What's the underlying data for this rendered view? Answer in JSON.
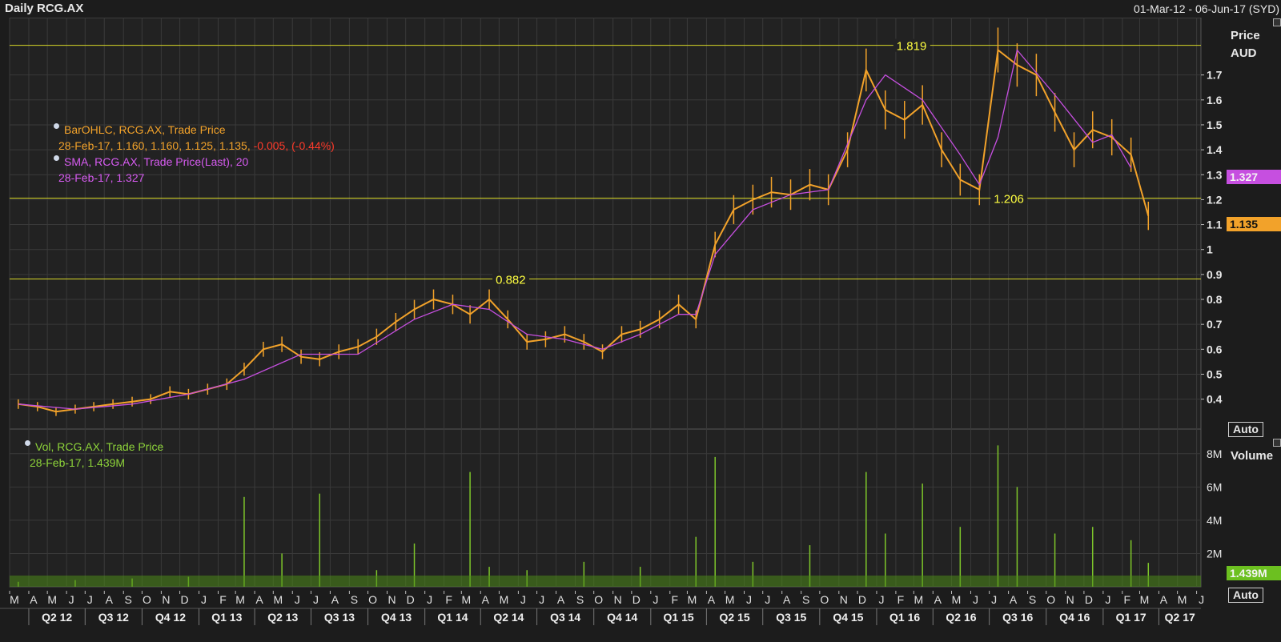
{
  "header": {
    "title": "Daily RCG.AX",
    "date_range": "01-Mar-12 - 06-Jun-17 (SYD)"
  },
  "legend": {
    "ohlc_name": "BarOHLC, RCG.AX, Trade Price",
    "ohlc_values": "28-Feb-17, 1.160, 1.160, 1.125, 1.135,",
    "ohlc_change": "-0.005, (-0.44%)",
    "sma_name": "SMA, RCG.AX, Trade Price(Last),  20",
    "sma_values": "28-Feb-17, 1.327",
    "vol_name": "Vol, RCG.AX, Trade Price",
    "vol_values": "28-Feb-17, 1.439M"
  },
  "price_axis": {
    "title": "Price",
    "unit": "AUD",
    "auto_label": "Auto",
    "ticks": [
      "0.4",
      "0.5",
      "0.6",
      "0.7",
      "0.8",
      "0.9",
      "1",
      "1.1",
      "1.2",
      "1.3",
      "1.4",
      "1.5",
      "1.6",
      "1.7"
    ],
    "last_sma_tag": "1.327",
    "last_price_tag": "1.135"
  },
  "volume_axis": {
    "title": "Volume",
    "auto_label": "Auto",
    "ticks": [
      "2M",
      "4M",
      "6M",
      "8M"
    ],
    "last_volume_tag": "1.439M"
  },
  "colors": {
    "background": "#1c1c1c",
    "grid": "#3a3a3a",
    "price_bars": "#f2a22a",
    "sma_line": "#c64fe0",
    "volume_bars": "#7ec62a",
    "hlines": "#d7d728",
    "sma_tag_bg": "#c64fe0",
    "price_tag_bg": "#f2a22a",
    "volume_tag_bg": "#6cc020"
  },
  "chart_data": {
    "type": "line",
    "instrument": "RCG.AX",
    "x_month_letters": [
      "M",
      "A",
      "M",
      "J",
      "J",
      "A",
      "S",
      "O",
      "N",
      "D",
      "J",
      "F",
      "M",
      "A",
      "M",
      "J",
      "J",
      "A",
      "S",
      "O",
      "N",
      "D",
      "J",
      "F",
      "M",
      "A",
      "M",
      "J",
      "J",
      "A",
      "S",
      "O",
      "N",
      "D",
      "J",
      "F",
      "M",
      "A",
      "M",
      "J",
      "J",
      "A",
      "S",
      "O",
      "N",
      "D",
      "J",
      "F",
      "M",
      "A",
      "M",
      "J",
      "J",
      "A",
      "S",
      "O",
      "N",
      "D",
      "J",
      "F",
      "M",
      "A",
      "M",
      "J"
    ],
    "x_quarter_labels": [
      "Q2 12",
      "Q3 12",
      "Q4 12",
      "Q1 13",
      "Q2 13",
      "Q3 13",
      "Q4 13",
      "Q1 14",
      "Q2 14",
      "Q3 14",
      "Q4 14",
      "Q1 15",
      "Q2 15",
      "Q3 15",
      "Q4 15",
      "Q1 16",
      "Q2 16",
      "Q3 16",
      "Q4 16",
      "Q1 17",
      "Q2 17"
    ],
    "ylim": [
      0.28,
      1.93
    ],
    "price_ylabels": [
      0.4,
      0.5,
      0.6,
      0.7,
      0.8,
      0.9,
      1,
      1.1,
      1.2,
      1.3,
      1.4,
      1.5,
      1.6,
      1.7
    ],
    "price_series": {
      "name": "BarOHLC, RCG.AX, Trade Price",
      "x": [
        "2012-03",
        "2012-04",
        "2012-05",
        "2012-06",
        "2012-07",
        "2012-08",
        "2012-09",
        "2012-10",
        "2012-11",
        "2012-12",
        "2013-01",
        "2013-02",
        "2013-03",
        "2013-04",
        "2013-05",
        "2013-06",
        "2013-07",
        "2013-08",
        "2013-09",
        "2013-10",
        "2013-11",
        "2013-12",
        "2014-01",
        "2014-02",
        "2014-03",
        "2014-04",
        "2014-05",
        "2014-06",
        "2014-07",
        "2014-08",
        "2014-09",
        "2014-10",
        "2014-11",
        "2014-12",
        "2015-01",
        "2015-02",
        "2015-03",
        "2015-04",
        "2015-05",
        "2015-06",
        "2015-07",
        "2015-08",
        "2015-09",
        "2015-10",
        "2015-11",
        "2015-12",
        "2016-01",
        "2016-02",
        "2016-03",
        "2016-04",
        "2016-05",
        "2016-06",
        "2016-07",
        "2016-08",
        "2016-09",
        "2016-10",
        "2016-11",
        "2016-12",
        "2017-01",
        "2017-02",
        "2017-03"
      ],
      "values": [
        0.38,
        0.37,
        0.35,
        0.36,
        0.37,
        0.38,
        0.39,
        0.4,
        0.43,
        0.42,
        0.44,
        0.46,
        0.52,
        0.6,
        0.62,
        0.57,
        0.56,
        0.59,
        0.61,
        0.65,
        0.71,
        0.76,
        0.8,
        0.78,
        0.74,
        0.8,
        0.72,
        0.63,
        0.64,
        0.66,
        0.63,
        0.59,
        0.66,
        0.68,
        0.72,
        0.78,
        0.72,
        1.02,
        1.16,
        1.2,
        1.23,
        1.22,
        1.26,
        1.24,
        1.4,
        1.72,
        1.56,
        1.52,
        1.58,
        1.4,
        1.28,
        1.24,
        1.8,
        1.74,
        1.7,
        1.55,
        1.4,
        1.48,
        1.45,
        1.38,
        1.135
      ]
    },
    "sma_series": {
      "name": "SMA, RCG.AX, Trade Price(Last),  20",
      "x": [
        "2012-03",
        "2012-06",
        "2012-09",
        "2012-12",
        "2013-03",
        "2013-06",
        "2013-09",
        "2013-12",
        "2014-02",
        "2014-04",
        "2014-06",
        "2014-08",
        "2014-10",
        "2014-12",
        "2015-02",
        "2015-03",
        "2015-04",
        "2015-06",
        "2015-08",
        "2015-10",
        "2015-12",
        "2016-01",
        "2016-03",
        "2016-05",
        "2016-06",
        "2016-07",
        "2016-08",
        "2016-10",
        "2016-12",
        "2017-01",
        "2017-02"
      ],
      "values": [
        0.38,
        0.36,
        0.38,
        0.42,
        0.48,
        0.58,
        0.58,
        0.72,
        0.78,
        0.76,
        0.66,
        0.64,
        0.6,
        0.66,
        0.74,
        0.74,
        0.98,
        1.16,
        1.22,
        1.24,
        1.6,
        1.7,
        1.6,
        1.38,
        1.26,
        1.45,
        1.8,
        1.62,
        1.43,
        1.46,
        1.327
      ]
    },
    "horizontal_lines": [
      {
        "value": 1.819,
        "label": "1.819"
      },
      {
        "value": 1.206,
        "label": "1.206"
      },
      {
        "value": 0.882,
        "label": "0.882"
      }
    ],
    "volume_series": {
      "name": "Vol, RCG.AX, Trade Price",
      "unit": "M",
      "ylim": [
        0,
        9.0
      ],
      "ylabels": [
        "2M",
        "4M",
        "6M",
        "8M"
      ],
      "x": [
        "2012-03",
        "2012-06",
        "2012-09",
        "2012-12",
        "2013-03",
        "2013-05",
        "2013-07",
        "2013-10",
        "2013-12",
        "2014-03",
        "2014-04",
        "2014-06",
        "2014-09",
        "2014-12",
        "2015-03",
        "2015-04",
        "2015-06",
        "2015-09",
        "2015-12",
        "2016-01",
        "2016-03",
        "2016-05",
        "2016-07",
        "2016-08",
        "2016-10",
        "2016-12",
        "2017-02",
        "2017-03"
      ],
      "values": [
        0.3,
        0.4,
        0.5,
        0.6,
        5.4,
        2.0,
        5.6,
        1.0,
        2.6,
        6.9,
        1.2,
        1.0,
        1.5,
        1.2,
        3.0,
        7.8,
        1.5,
        2.5,
        6.9,
        3.2,
        6.2,
        3.6,
        8.5,
        6.0,
        3.2,
        3.6,
        2.8,
        1.439
      ]
    }
  }
}
